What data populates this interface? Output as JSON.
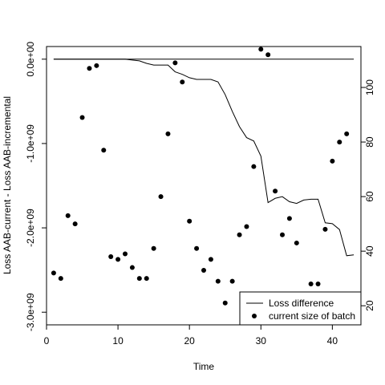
{
  "chart_data": {
    "type": "line",
    "title": "",
    "xlabel": "Time",
    "ylabel_left": "Loss AAB-current - Loss AAB-incremental",
    "ylabel_right": "",
    "xlim": [
      0,
      44
    ],
    "ylim_left": [
      -3150000000.0,
      150000000.0
    ],
    "ylim_right": [
      13,
      115
    ],
    "x_ticks": [
      0,
      10,
      20,
      30,
      40
    ],
    "x_tick_labels": [
      "0",
      "10",
      "20",
      "30",
      "40"
    ],
    "y_left_ticks": [
      0,
      -1000000000,
      -2000000000,
      -3000000000
    ],
    "y_left_tick_labels": [
      "0.0e+00",
      "-1.0e+09",
      "-2.0e+09",
      "-3.0e+09"
    ],
    "y_right_ticks": [
      20,
      40,
      60,
      80,
      100
    ],
    "y_right_tick_labels": [
      "20",
      "40",
      "60",
      "80",
      "100"
    ],
    "grid": false,
    "legend_position": "bottom-right",
    "legend": [
      {
        "label": "Loss difference",
        "symbol": "line"
      },
      {
        "label": "current size of batch",
        "symbol": "point"
      }
    ],
    "series": [
      {
        "name": "Loss difference",
        "kind": "line",
        "axis": "left",
        "points": [
          [
            1,
            0
          ],
          [
            11,
            0
          ],
          [
            12,
            -10000000.0
          ],
          [
            13,
            -20000000.0
          ],
          [
            14,
            -50000000.0
          ],
          [
            15,
            -70000000.0
          ],
          [
            17,
            -70000000.0
          ],
          [
            18,
            -150000000.0
          ],
          [
            19,
            -180000000.0
          ],
          [
            20,
            -220000000.0
          ],
          [
            21,
            -240000000.0
          ],
          [
            23,
            -240000000.0
          ],
          [
            24,
            -270000000.0
          ],
          [
            25,
            -420000000.0
          ],
          [
            26,
            -620000000.0
          ],
          [
            27,
            -800000000.0
          ],
          [
            28,
            -930000000.0
          ],
          [
            29,
            -970000000.0
          ],
          [
            30,
            -1150000000.0
          ],
          [
            31,
            -1700000000.0
          ],
          [
            32,
            -1650000000.0
          ],
          [
            33,
            -1630000000.0
          ],
          [
            34,
            -1690000000.0
          ],
          [
            35,
            -1710000000.0
          ],
          [
            36,
            -1670000000.0
          ],
          [
            37,
            -1660000000.0
          ],
          [
            38,
            -1660000000.0
          ],
          [
            39,
            -1940000000.0
          ],
          [
            40,
            -1950000000.0
          ],
          [
            41,
            -2020000000.0
          ],
          [
            42,
            -2330000000.0
          ],
          [
            43,
            -2320000000.0
          ]
        ]
      },
      {
        "name": "current size of batch",
        "kind": "point",
        "axis": "right",
        "x": [
          1,
          2,
          3,
          4,
          5,
          6,
          7,
          8,
          9,
          10,
          11,
          12,
          13,
          14,
          15,
          16,
          17,
          18,
          19,
          20,
          21,
          22,
          23,
          24,
          25,
          26,
          27,
          28,
          29,
          30,
          31,
          32,
          33,
          34,
          35,
          36,
          37,
          38,
          39,
          40,
          41,
          42
        ],
        "y": [
          32,
          30,
          53,
          50,
          89,
          107,
          108,
          77,
          38,
          37,
          39,
          34,
          30,
          30,
          41,
          60,
          83,
          109,
          102,
          51,
          41,
          33,
          37,
          29,
          21,
          29,
          46,
          49,
          71,
          114,
          112,
          62,
          46,
          52,
          43,
          23,
          28,
          28,
          48,
          73,
          80,
          83
        ]
      },
      {
        "name": "",
        "kind": "line",
        "axis": "left",
        "points": [
          [
            1,
            0
          ],
          [
            43,
            0
          ]
        ]
      }
    ]
  }
}
